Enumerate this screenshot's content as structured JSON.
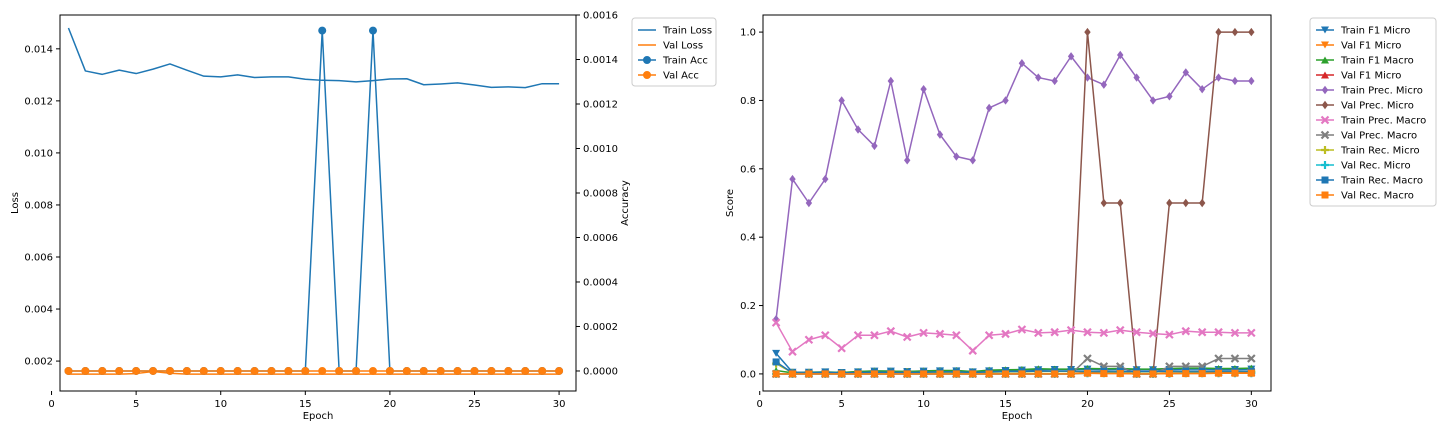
{
  "chart_data": [
    {
      "type": "line",
      "xlabel": "Epoch",
      "ylabel": "Loss",
      "y2label": "Accuracy",
      "x": [
        1,
        2,
        3,
        4,
        5,
        6,
        7,
        8,
        9,
        10,
        11,
        12,
        13,
        14,
        15,
        16,
        17,
        18,
        19,
        20,
        21,
        22,
        23,
        24,
        25,
        26,
        27,
        28,
        29,
        30
      ],
      "xlim": [
        0.5,
        31
      ],
      "ylim": [
        0.00085,
        0.0153
      ],
      "y2lim": [
        -9e-05,
        0.0016
      ],
      "xticks": [
        "0",
        "5",
        "10",
        "15",
        "20",
        "25",
        "30"
      ],
      "yticks": [
        "0.002",
        "0.004",
        "0.006",
        "0.008",
        "0.010",
        "0.012",
        "0.014"
      ],
      "y2ticks": [
        "0.0000",
        "0.0002",
        "0.0004",
        "0.0006",
        "0.0008",
        "0.0010",
        "0.0012",
        "0.0014",
        "0.0016"
      ],
      "grid": false,
      "legend_position": "outside-right",
      "series": [
        {
          "name": "Train Loss",
          "axis": "left",
          "marker": "none",
          "color": "#1f77b4",
          "values": [
            0.0148,
            0.01315,
            0.01302,
            0.01318,
            0.01305,
            0.01322,
            0.01342,
            0.01318,
            0.01295,
            0.01292,
            0.013,
            0.0129,
            0.01292,
            0.01292,
            0.01283,
            0.01279,
            0.01278,
            0.01273,
            0.01278,
            0.01284,
            0.01285,
            0.01262,
            0.01265,
            0.01269,
            0.01261,
            0.01252,
            0.01254,
            0.01251,
            0.01266,
            0.01266
          ]
        },
        {
          "name": "Val Loss",
          "axis": "left",
          "marker": "none",
          "color": "#ff7f0e",
          "values": [
            0.0015,
            0.0015,
            0.0015,
            0.0015,
            0.00152,
            0.0016,
            0.00153,
            0.0015,
            0.0015,
            0.0015,
            0.0015,
            0.0015,
            0.0015,
            0.0015,
            0.0015,
            0.0015,
            0.0015,
            0.0015,
            0.0015,
            0.0015,
            0.0015,
            0.0015,
            0.0015,
            0.0015,
            0.0015,
            0.0015,
            0.0015,
            0.0015,
            0.0015,
            0.0015
          ]
        },
        {
          "name": "Train Acc",
          "axis": "right",
          "marker": "circle",
          "color": "#1f77b4",
          "values": [
            0,
            0,
            0,
            0,
            0,
            0,
            0,
            0,
            0,
            0,
            0,
            0,
            0,
            0,
            0,
            0.00153,
            0,
            0,
            0.00153,
            0,
            0,
            0,
            0,
            0,
            0,
            0,
            0,
            0,
            0,
            0
          ]
        },
        {
          "name": "Val Acc",
          "axis": "right",
          "marker": "circle",
          "color": "#ff7f0e",
          "values": [
            0,
            0,
            0,
            0,
            0,
            0,
            0,
            0,
            0,
            0,
            0,
            0,
            0,
            0,
            0,
            0,
            0,
            0,
            0,
            0,
            0,
            0,
            0,
            0,
            0,
            0,
            0,
            0,
            0,
            0
          ]
        }
      ]
    },
    {
      "type": "line",
      "xlabel": "Epoch",
      "ylabel": "Score",
      "x": [
        1,
        2,
        3,
        4,
        5,
        6,
        7,
        8,
        9,
        10,
        11,
        12,
        13,
        14,
        15,
        16,
        17,
        18,
        19,
        20,
        21,
        22,
        23,
        24,
        25,
        26,
        27,
        28,
        29,
        30
      ],
      "xlim": [
        0.2,
        31.2
      ],
      "ylim": [
        -0.05,
        1.05
      ],
      "xticks": [
        "0",
        "5",
        "10",
        "15",
        "20",
        "25",
        "30"
      ],
      "yticks": [
        "0.0",
        "0.2",
        "0.4",
        "0.6",
        "0.8",
        "1.0"
      ],
      "grid": false,
      "legend_position": "outside-right",
      "series": [
        {
          "name": "Train F1 Micro",
          "marker": "tri_down",
          "color": "#1f77b4",
          "values": [
            0.06,
            0.005,
            0.005,
            0.006,
            0.004,
            0.006,
            0.008,
            0.008,
            0.007,
            0.008,
            0.009,
            0.009,
            0.006,
            0.009,
            0.01,
            0.011,
            0.012,
            0.013,
            0.013,
            0.014,
            0.013,
            0.014,
            0.012,
            0.012,
            0.013,
            0.014,
            0.014,
            0.013,
            0.013,
            0.014
          ]
        },
        {
          "name": "Val F1 Micro",
          "marker": "tri_down",
          "color": "#ff7f0e",
          "values": [
            0,
            0,
            0,
            0,
            0,
            0,
            0,
            0,
            0,
            0,
            0,
            0,
            0,
            0,
            0,
            0,
            0,
            0,
            0,
            0.005,
            0.003,
            0.003,
            0,
            0,
            0.002,
            0.003,
            0.003,
            0.004,
            0.004,
            0.004
          ]
        },
        {
          "name": "Train F1 Macro",
          "marker": "tri_up",
          "color": "#2ca02c",
          "values": [
            0.01,
            0.003,
            0.004,
            0.005,
            0.004,
            0.007,
            0.009,
            0.008,
            0.007,
            0.009,
            0.01,
            0.01,
            0.007,
            0.011,
            0.012,
            0.013,
            0.015,
            0.014,
            0.014,
            0.016,
            0.015,
            0.016,
            0.014,
            0.014,
            0.016,
            0.017,
            0.017,
            0.016,
            0.016,
            0.017
          ]
        },
        {
          "name": "Val F1 Micro",
          "marker": "tri_up",
          "color": "#d62728",
          "values": [
            0,
            0,
            0,
            0,
            0,
            0,
            0,
            0,
            0,
            0,
            0,
            0,
            0,
            0,
            0,
            0,
            0,
            0,
            0,
            0.004,
            0.003,
            0.003,
            0,
            0,
            0.002,
            0.003,
            0.003,
            0.004,
            0.004,
            0.004
          ]
        },
        {
          "name": "Train Prec. Micro",
          "marker": "diamond",
          "color": "#9467bd",
          "values": [
            0.16,
            0.57,
            0.5,
            0.57,
            0.8,
            0.715,
            0.667,
            0.857,
            0.625,
            0.833,
            0.7,
            0.636,
            0.625,
            0.778,
            0.8,
            0.909,
            0.867,
            0.857,
            0.929,
            0.867,
            0.846,
            0.933,
            0.867,
            0.8,
            0.812,
            0.882,
            0.833,
            0.867,
            0.857,
            0.857
          ]
        },
        {
          "name": "Val Prec. Micro",
          "marker": "diamond",
          "color": "#8c564b",
          "values": [
            0,
            0,
            0,
            0,
            0,
            0,
            0,
            0,
            0,
            0,
            0,
            0,
            0,
            0,
            0,
            0,
            0,
            0,
            0,
            1.0,
            0.5,
            0.5,
            0,
            0,
            0.5,
            0.5,
            0.5,
            1.0,
            1.0,
            1.0
          ]
        },
        {
          "name": "Train Prec. Macro",
          "marker": "x",
          "color": "#e377c2",
          "values": [
            0.15,
            0.065,
            0.1,
            0.113,
            0.075,
            0.113,
            0.113,
            0.125,
            0.108,
            0.12,
            0.117,
            0.113,
            0.068,
            0.113,
            0.117,
            0.13,
            0.12,
            0.122,
            0.128,
            0.122,
            0.12,
            0.128,
            0.122,
            0.118,
            0.115,
            0.125,
            0.122,
            0.122,
            0.12,
            0.12
          ]
        },
        {
          "name": "Val Prec. Macro",
          "marker": "x",
          "color": "#7f7f7f",
          "values": [
            0,
            0,
            0,
            0,
            0,
            0,
            0,
            0,
            0,
            0,
            0,
            0,
            0,
            0,
            0,
            0,
            0,
            0,
            0,
            0.045,
            0.022,
            0.022,
            0,
            0,
            0.022,
            0.022,
            0.022,
            0.045,
            0.045,
            0.045
          ]
        },
        {
          "name": "Train Rec. Micro",
          "marker": "plus",
          "color": "#bcbd22",
          "values": [
            0.03,
            0.003,
            0.003,
            0.003,
            0.002,
            0.003,
            0.004,
            0.004,
            0.004,
            0.004,
            0.005,
            0.005,
            0.003,
            0.005,
            0.006,
            0.006,
            0.007,
            0.007,
            0.007,
            0.007,
            0.007,
            0.007,
            0.006,
            0.006,
            0.007,
            0.007,
            0.007,
            0.007,
            0.007,
            0.007
          ]
        },
        {
          "name": "Val Rec. Micro",
          "marker": "plus",
          "color": "#17becf",
          "values": [
            0,
            0,
            0,
            0,
            0,
            0,
            0,
            0,
            0,
            0,
            0,
            0,
            0,
            0,
            0,
            0,
            0,
            0,
            0,
            0.002,
            0.002,
            0.002,
            0,
            0,
            0.001,
            0.002,
            0.002,
            0.002,
            0.002,
            0.002
          ]
        },
        {
          "name": "Train Rec. Macro",
          "marker": "square",
          "color": "#1f77b4",
          "values": [
            0.035,
            0.003,
            0.003,
            0.004,
            0.003,
            0.004,
            0.005,
            0.005,
            0.004,
            0.005,
            0.006,
            0.006,
            0.004,
            0.006,
            0.007,
            0.007,
            0.008,
            0.008,
            0.008,
            0.008,
            0.008,
            0.008,
            0.007,
            0.007,
            0.008,
            0.008,
            0.008,
            0.008,
            0.008,
            0.008
          ]
        },
        {
          "name": "Val Rec. Macro",
          "marker": "square",
          "color": "#ff7f0e",
          "values": [
            0,
            0,
            0,
            0,
            0,
            0,
            0,
            0,
            0,
            0,
            0,
            0,
            0,
            0,
            0,
            0,
            0,
            0,
            0,
            0.002,
            0.001,
            0.001,
            0,
            0,
            0.001,
            0.001,
            0.001,
            0.002,
            0.002,
            0.002
          ]
        }
      ]
    }
  ]
}
